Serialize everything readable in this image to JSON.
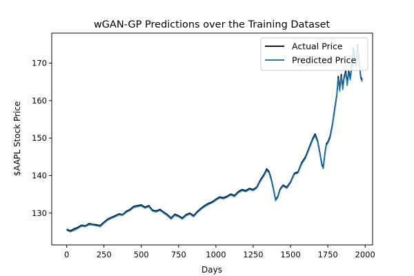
{
  "chart_data": {
    "type": "line",
    "title": "wGAN-GP Predictions over the Training Dataset",
    "xlabel": "Days",
    "ylabel": "$AAPL Stock Price",
    "xlim": [
      -100,
      2050
    ],
    "ylim": [
      121.5,
      178
    ],
    "xticks": [
      0,
      250,
      500,
      750,
      1000,
      1250,
      1500,
      1750,
      2000
    ],
    "yticks": [
      130,
      140,
      150,
      160,
      170
    ],
    "legend_position": "top-right",
    "grid": false,
    "series": [
      {
        "name": "Actual Price",
        "color": "#0d1b2a",
        "x": [
          0,
          25,
          50,
          75,
          100,
          125,
          150,
          175,
          200,
          225,
          250,
          275,
          300,
          325,
          350,
          375,
          400,
          425,
          450,
          475,
          500,
          525,
          550,
          575,
          600,
          625,
          650,
          675,
          700,
          725,
          750,
          775,
          800,
          825,
          850,
          875,
          900,
          925,
          950,
          975,
          1000,
          1025,
          1050,
          1075,
          1100,
          1125,
          1150,
          1175,
          1200,
          1225,
          1250,
          1275,
          1300,
          1325,
          1340,
          1355,
          1370,
          1385,
          1400,
          1415,
          1430,
          1450,
          1475,
          1500,
          1525,
          1550,
          1575,
          1600,
          1625,
          1650,
          1665,
          1680,
          1695,
          1710,
          1720,
          1730,
          1740,
          1750,
          1765,
          1780,
          1795,
          1810,
          1820,
          1830,
          1840,
          1850,
          1860,
          1870,
          1880,
          1890,
          1900,
          1910,
          1920,
          1930,
          1940,
          1950,
          1960,
          1970,
          1980
        ],
        "y": [
          125.7,
          125.3,
          125.8,
          126.2,
          126.8,
          126.6,
          127.2,
          127.0,
          126.9,
          126.7,
          127.6,
          128.4,
          128.9,
          129.3,
          129.8,
          129.6,
          130.5,
          131.0,
          131.8,
          132.0,
          132.2,
          131.6,
          132.0,
          130.8,
          130.6,
          131.0,
          130.3,
          129.6,
          128.7,
          129.7,
          129.3,
          128.7,
          129.6,
          130.0,
          129.3,
          130.4,
          131.3,
          132.0,
          132.6,
          133.0,
          133.7,
          134.3,
          134.1,
          134.5,
          135.1,
          134.7,
          135.7,
          136.3,
          136.0,
          136.6,
          136.3,
          137.0,
          139.0,
          140.5,
          141.8,
          141.2,
          139.3,
          136.5,
          133.6,
          134.5,
          136.4,
          137.5,
          136.9,
          138.3,
          140.6,
          141.0,
          143.5,
          145.0,
          147.5,
          150.0,
          151.1,
          149.5,
          146.5,
          143.0,
          142.3,
          145.8,
          148.5,
          149.0,
          150.5,
          153.5,
          157.5,
          161.5,
          166.5,
          163.0,
          167.0,
          163.5,
          166.5,
          168.0,
          164.5,
          168.0,
          166.0,
          169.0,
          174.0,
          172.0,
          169.5,
          175.0,
          170.5,
          166.5,
          165.5
        ]
      },
      {
        "name": "Predicted Price",
        "color": "#1f77b4",
        "x": [
          0,
          25,
          50,
          75,
          100,
          125,
          150,
          175,
          200,
          225,
          250,
          275,
          300,
          325,
          350,
          375,
          400,
          425,
          450,
          475,
          500,
          525,
          550,
          575,
          600,
          625,
          650,
          675,
          700,
          725,
          750,
          775,
          800,
          825,
          850,
          875,
          900,
          925,
          950,
          975,
          1000,
          1025,
          1050,
          1075,
          1100,
          1125,
          1150,
          1175,
          1200,
          1225,
          1250,
          1275,
          1300,
          1325,
          1340,
          1355,
          1370,
          1385,
          1400,
          1415,
          1430,
          1450,
          1475,
          1500,
          1525,
          1550,
          1575,
          1600,
          1625,
          1650,
          1665,
          1680,
          1695,
          1710,
          1720,
          1730,
          1740,
          1750,
          1765,
          1780,
          1795,
          1810,
          1820,
          1830,
          1840,
          1850,
          1860,
          1870,
          1880,
          1890,
          1900,
          1910,
          1920,
          1930,
          1940,
          1950,
          1960,
          1970,
          1980
        ],
        "y": [
          125.4,
          125.0,
          125.4,
          125.9,
          126.5,
          126.4,
          126.9,
          126.8,
          126.6,
          126.4,
          127.3,
          128.1,
          128.6,
          129.0,
          129.5,
          129.4,
          130.2,
          130.7,
          131.5,
          131.7,
          131.9,
          131.3,
          131.7,
          130.5,
          130.3,
          130.7,
          130.0,
          129.3,
          128.4,
          129.4,
          129.0,
          128.4,
          129.3,
          129.7,
          129.0,
          130.1,
          131.0,
          131.7,
          132.3,
          132.7,
          133.4,
          134.0,
          133.8,
          134.2,
          134.8,
          134.4,
          135.4,
          136.0,
          135.7,
          136.3,
          136.0,
          136.7,
          138.6,
          140.1,
          141.3,
          140.8,
          138.9,
          136.2,
          133.3,
          134.2,
          136.1,
          137.2,
          136.6,
          138.0,
          140.3,
          140.7,
          143.1,
          144.6,
          147.1,
          149.6,
          150.6,
          149.1,
          146.1,
          142.6,
          141.9,
          145.4,
          148.1,
          148.6,
          150.0,
          153.0,
          157.0,
          161.0,
          165.8,
          162.5,
          166.4,
          162.9,
          165.9,
          167.4,
          164.0,
          167.4,
          165.5,
          168.4,
          173.3,
          171.4,
          169.0,
          174.3,
          170.0,
          166.0,
          165.0
        ]
      }
    ]
  }
}
